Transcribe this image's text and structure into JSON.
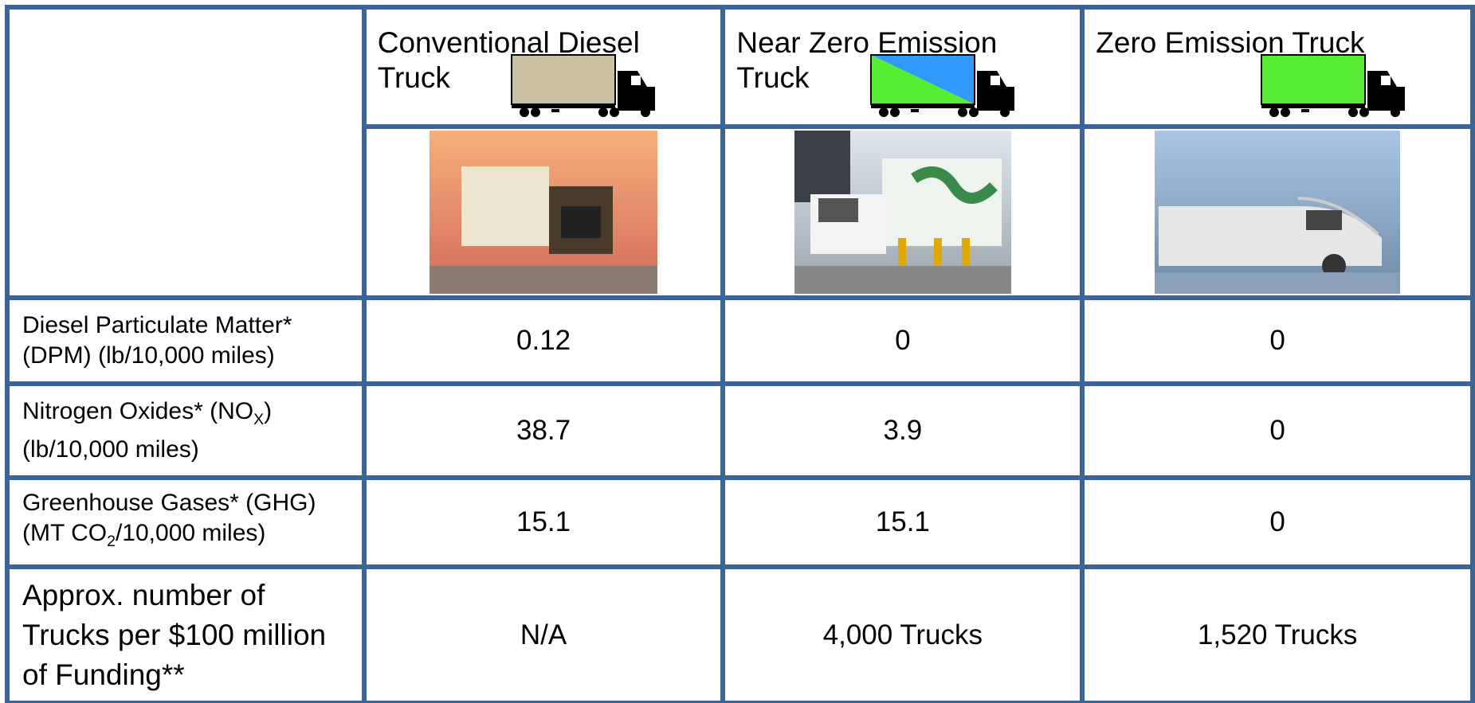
{
  "table": {
    "columns": [
      {
        "title": "Conventional Diesel Truck"
      },
      {
        "title": "Near Zero Emission Truck"
      },
      {
        "title": "Zero Emission Truck"
      }
    ],
    "rows": [
      {
        "label_lines": [
          [
            "Diesel Particulate Matter*"
          ],
          [
            "(DPM) (lb/10,000 miles)"
          ]
        ],
        "values": [
          0.12,
          0,
          0
        ]
      },
      {
        "label_lines": [
          [
            "Nitrogen Oxides* (NO",
            "X",
            ")"
          ],
          [
            "(lb/10,000 miles)"
          ]
        ],
        "values": [
          38.7,
          3.9,
          0
        ]
      },
      {
        "label_lines": [
          [
            "Greenhouse Gases* (GHG)"
          ],
          [
            "(MT CO",
            "2",
            "/10,000 miles)"
          ]
        ],
        "values": [
          15.1,
          15.1,
          0
        ]
      },
      {
        "label_lines": [
          [
            "Approx. number of"
          ],
          [
            "Trucks per $100 million"
          ],
          [
            "of Funding**"
          ]
        ],
        "values": [
          "N/A",
          "4,000 Trucks",
          "1,520 Trucks"
        ]
      }
    ]
  }
}
